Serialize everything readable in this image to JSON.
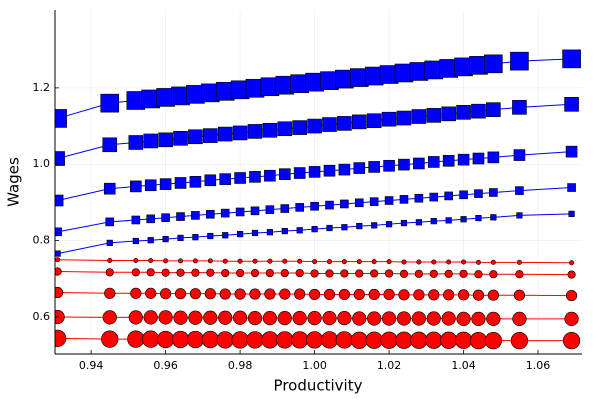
{
  "chart_data": {
    "type": "line",
    "x_label": "Productivity",
    "y_label": "Wages",
    "x": [
      0.931,
      0.945,
      0.952,
      0.956,
      0.96,
      0.964,
      0.968,
      0.972,
      0.976,
      0.98,
      0.984,
      0.988,
      0.992,
      0.996,
      1.0,
      1.004,
      1.008,
      1.012,
      1.016,
      1.02,
      1.024,
      1.028,
      1.032,
      1.036,
      1.04,
      1.044,
      1.048,
      1.055,
      1.069
    ],
    "xlim": [
      0.9303,
      1.0718
    ],
    "xticks": [
      0.94,
      0.96,
      0.98,
      {
        "value": 1,
        "label": "1.00"
      },
      1.02,
      1.04,
      1.06
    ],
    "ylim": [
      0.503,
      1.404
    ],
    "yticks": [
      0.6,
      0.8,
      {
        "value": 1,
        "label": "1.0"
      },
      1.2
    ],
    "grid": true,
    "series": [
      {
        "color": "#0000ff",
        "marker": "square",
        "marker_size": 9,
        "values": [
          1.12,
          1.16,
          1.167,
          1.171,
          1.175,
          1.179,
          1.183,
          1.187,
          1.191,
          1.195,
          1.199,
          1.203,
          1.207,
          1.211,
          1.215,
          1.219,
          1.223,
          1.227,
          1.231,
          1.235,
          1.239,
          1.243,
          1.247,
          1.251,
          1.255,
          1.259,
          1.263,
          1.27,
          1.276
        ]
      },
      {
        "color": "#0000ff",
        "marker": "square",
        "marker_size": 7,
        "values": [
          1.015,
          1.051,
          1.057,
          1.061,
          1.064,
          1.068,
          1.072,
          1.075,
          1.079,
          1.082,
          1.086,
          1.089,
          1.093,
          1.096,
          1.1,
          1.104,
          1.107,
          1.111,
          1.114,
          1.118,
          1.121,
          1.125,
          1.128,
          1.132,
          1.136,
          1.139,
          1.143,
          1.149,
          1.157
        ]
      },
      {
        "color": "#0000ff",
        "marker": "square",
        "marker_size": 5.5,
        "values": [
          0.905,
          0.936,
          0.942,
          0.945,
          0.948,
          0.951,
          0.954,
          0.958,
          0.961,
          0.964,
          0.967,
          0.97,
          0.974,
          0.977,
          0.98,
          0.983,
          0.986,
          0.99,
          0.993,
          0.996,
          0.999,
          1.002,
          1.006,
          1.009,
          1.012,
          1.015,
          1.018,
          1.024,
          1.033
        ]
      },
      {
        "color": "#0000ff",
        "marker": "square",
        "marker_size": 4,
        "values": [
          0.823,
          0.849,
          0.854,
          0.857,
          0.86,
          0.863,
          0.866,
          0.869,
          0.872,
          0.875,
          0.878,
          0.881,
          0.884,
          0.887,
          0.89,
          0.893,
          0.896,
          0.899,
          0.902,
          0.905,
          0.908,
          0.911,
          0.914,
          0.917,
          0.92,
          0.923,
          0.926,
          0.931,
          0.939
        ]
      },
      {
        "color": "#0000ff",
        "marker": "square",
        "marker_size": 2.8,
        "values": [
          0.766,
          0.794,
          0.799,
          0.801,
          0.804,
          0.807,
          0.809,
          0.812,
          0.814,
          0.817,
          0.82,
          0.822,
          0.825,
          0.827,
          0.83,
          0.833,
          0.835,
          0.838,
          0.84,
          0.843,
          0.846,
          0.848,
          0.851,
          0.853,
          0.856,
          0.859,
          0.861,
          0.866,
          0.87
        ]
      },
      {
        "color": "#ff0000",
        "marker": "circle",
        "marker_size": 2.2,
        "values": [
          0.75,
          0.748,
          0.748,
          0.748,
          0.747,
          0.747,
          0.747,
          0.747,
          0.746,
          0.746,
          0.746,
          0.746,
          0.746,
          0.746,
          0.745,
          0.745,
          0.745,
          0.745,
          0.745,
          0.745,
          0.744,
          0.744,
          0.744,
          0.744,
          0.744,
          0.743,
          0.743,
          0.743,
          0.742
        ]
      },
      {
        "color": "#ff0000",
        "marker": "circle",
        "marker_size": 3.8,
        "values": [
          0.719,
          0.717,
          0.717,
          0.717,
          0.716,
          0.716,
          0.716,
          0.716,
          0.715,
          0.715,
          0.715,
          0.715,
          0.715,
          0.715,
          0.714,
          0.714,
          0.714,
          0.714,
          0.714,
          0.714,
          0.713,
          0.713,
          0.713,
          0.713,
          0.713,
          0.712,
          0.712,
          0.712,
          0.711
        ]
      },
      {
        "color": "#ff0000",
        "marker": "circle",
        "marker_size": 5.3,
        "values": [
          0.664,
          0.662,
          0.662,
          0.662,
          0.661,
          0.661,
          0.661,
          0.661,
          0.66,
          0.66,
          0.66,
          0.66,
          0.66,
          0.66,
          0.659,
          0.659,
          0.659,
          0.659,
          0.659,
          0.659,
          0.658,
          0.658,
          0.658,
          0.658,
          0.658,
          0.657,
          0.657,
          0.657,
          0.656
        ]
      },
      {
        "color": "#ff0000",
        "marker": "circle",
        "marker_size": 6.8,
        "values": [
          0.6,
          0.599,
          0.599,
          0.599,
          0.599,
          0.598,
          0.598,
          0.598,
          0.598,
          0.598,
          0.597,
          0.597,
          0.597,
          0.597,
          0.597,
          0.597,
          0.597,
          0.596,
          0.596,
          0.596,
          0.596,
          0.596,
          0.596,
          0.596,
          0.595,
          0.595,
          0.595,
          0.595,
          0.595
        ]
      },
      {
        "color": "#ff0000",
        "marker": "circle",
        "marker_size": 8.3,
        "values": [
          0.544,
          0.542,
          0.542,
          0.542,
          0.541,
          0.541,
          0.541,
          0.541,
          0.54,
          0.54,
          0.54,
          0.54,
          0.54,
          0.54,
          0.54,
          0.54,
          0.54,
          0.539,
          0.539,
          0.539,
          0.539,
          0.539,
          0.539,
          0.539,
          0.539,
          0.538,
          0.538,
          0.538,
          0.538
        ]
      }
    ]
  }
}
